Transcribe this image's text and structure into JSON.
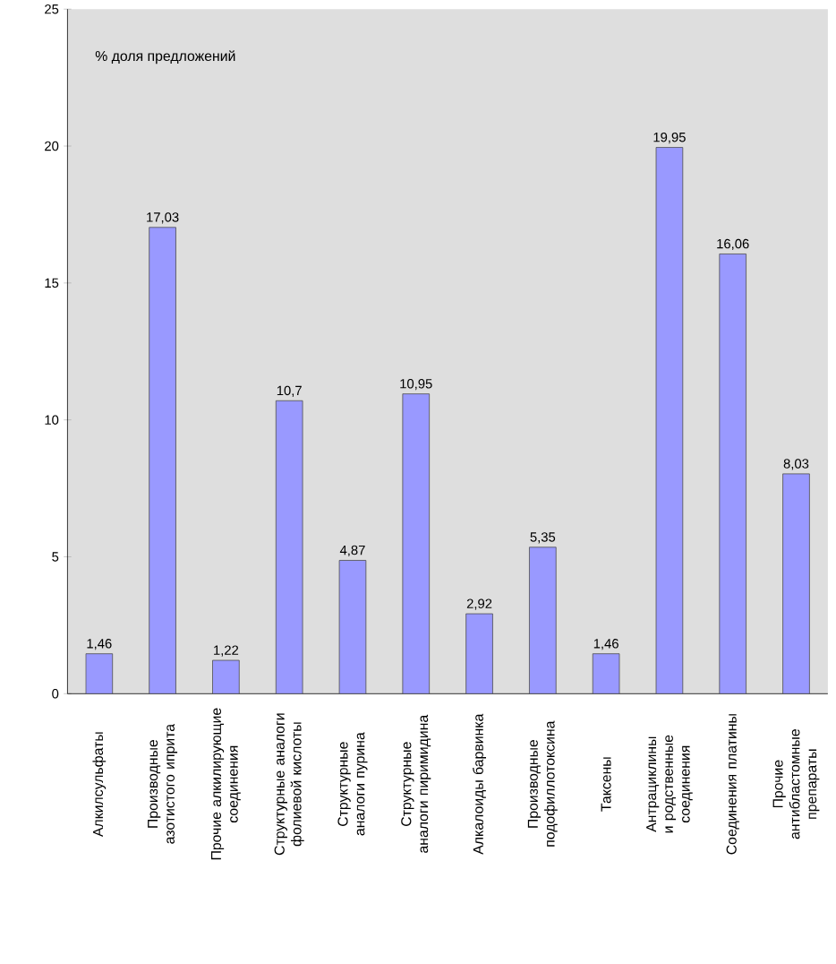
{
  "chart_data": {
    "type": "bar",
    "categories": [
      "Алкилсульфаты",
      "Производные азотистого иприта",
      "Прочие алкилирующие соединения",
      "Структурные аналоги фолиевой кислоты",
      "Структурные аналоги пурина",
      "Структурные аналоги пиримидина",
      "Алкалоиды барвинка",
      "Производные подофиллотоксина",
      "Таксены",
      "Антрациклины и родственные соединения",
      "Соединения платины",
      "Прочие антибластомные препараты"
    ],
    "values": [
      1.46,
      17.03,
      1.22,
      10.7,
      4.87,
      10.95,
      2.92,
      5.35,
      1.46,
      19.95,
      16.06,
      8.03
    ],
    "value_labels": [
      "1,46",
      "17,03",
      "1,22",
      "10,7",
      "4,87",
      "10,95",
      "2,92",
      "5,35",
      "1,46",
      "19,95",
      "16,06",
      "8,03"
    ],
    "color": "#9999ff",
    "ylim": [
      0,
      25
    ],
    "yticks": [
      0,
      5,
      10,
      15,
      20,
      25
    ],
    "annotations": [
      "% доля предложений"
    ],
    "grid": false
  }
}
